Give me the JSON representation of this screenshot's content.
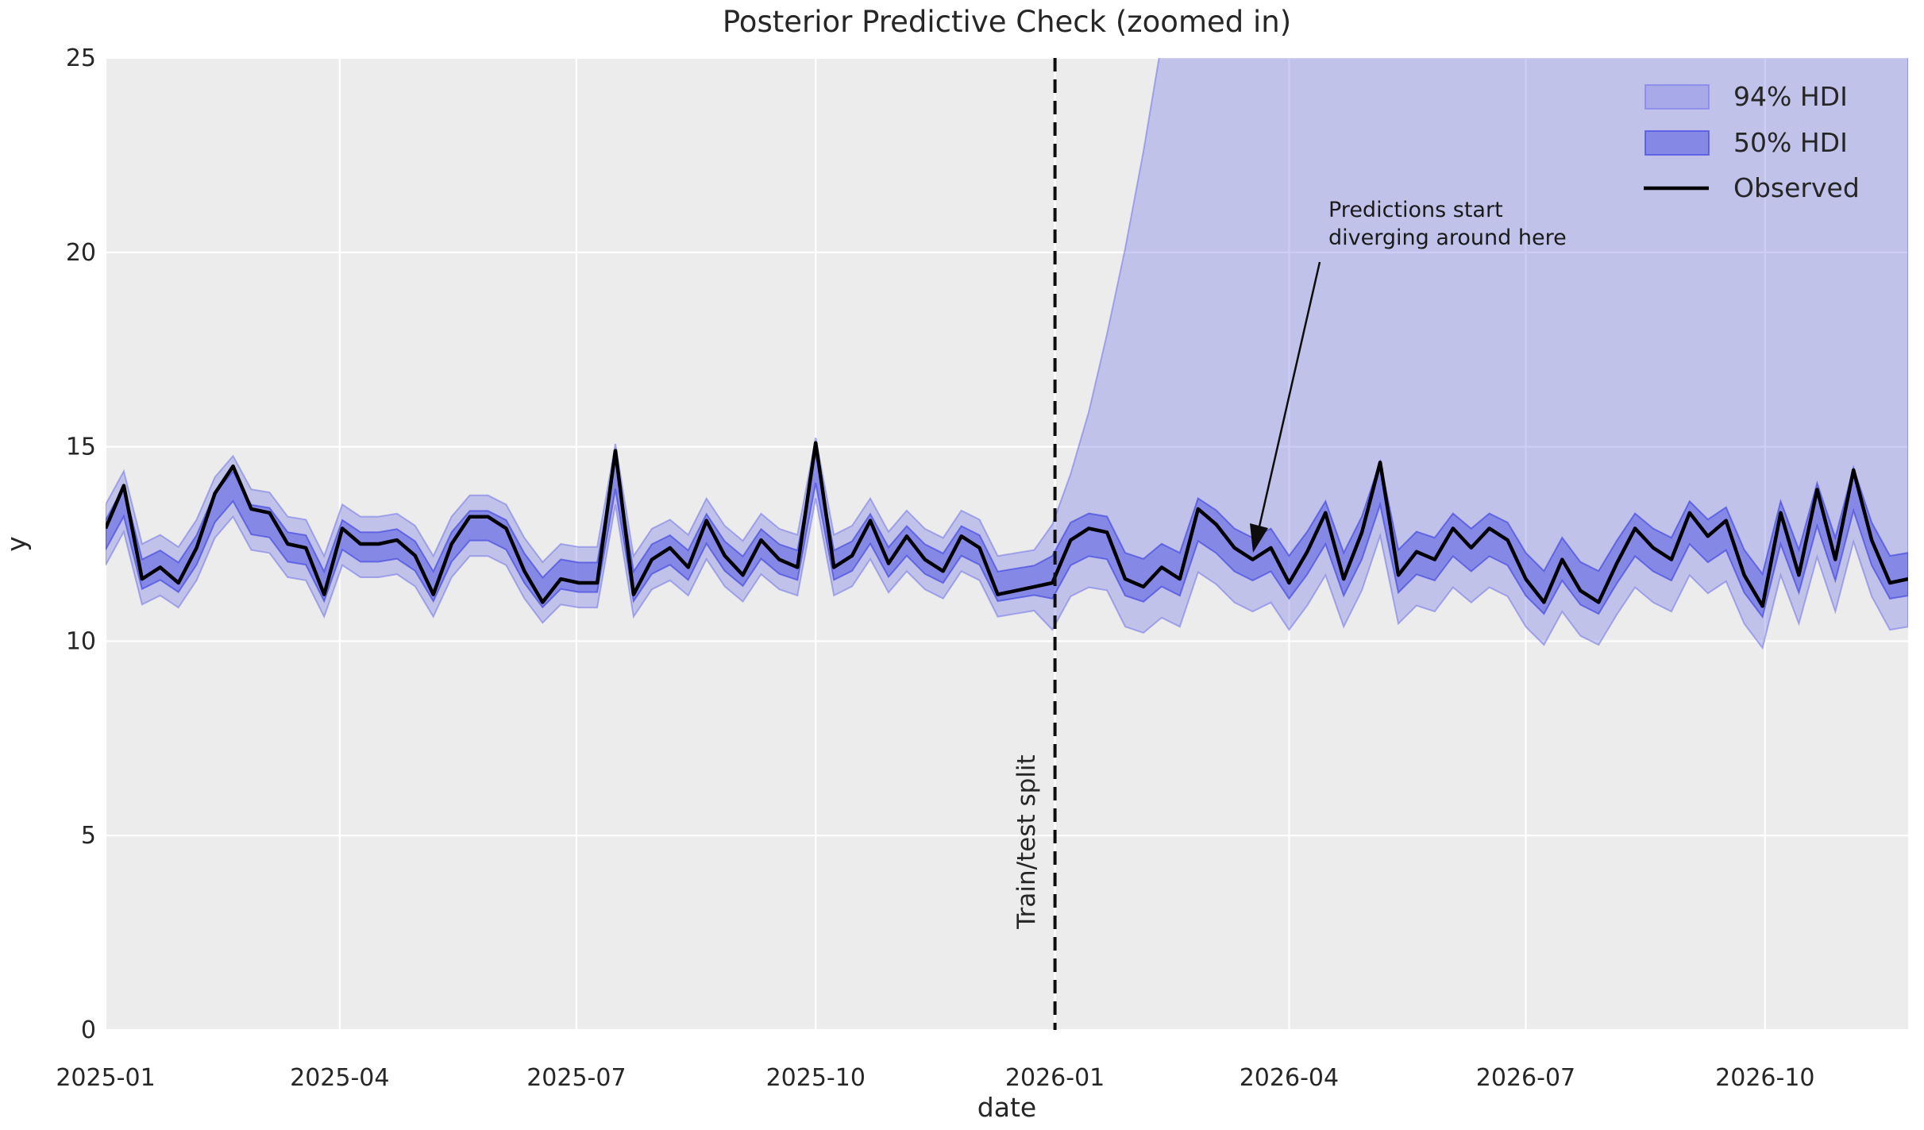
{
  "title": "Posterior Predictive Check (zoomed in)",
  "xlabel": "date",
  "ylabel": "y",
  "split_label": "Train/test split",
  "split_date": "2026-01-01",
  "annotation": {
    "line1": "Predictions start",
    "line2": "diverging around here"
  },
  "legend": {
    "hdi94": "94% HDI",
    "hdi50": "50% HDI",
    "observed": "Observed"
  },
  "colors": {
    "background": "#ffffff",
    "plot_bg": "#ececec",
    "grid": "#ffffff",
    "hdi94_fill": "rgba(130,133,232,0.40)",
    "hdi94_edge": "rgba(113,117,229,0.55)",
    "hdi50_fill": "rgba(85,90,226,0.55)",
    "hdi50_edge": "rgba(70,75,222,0.70)",
    "observed": "#000000",
    "split_line": "#0d0d0d",
    "annotation_arrow": "#0d0d0d",
    "text": "#262626"
  },
  "chart_data": {
    "type": "line",
    "title": "Posterior Predictive Check (zoomed in)",
    "xlabel": "date",
    "ylabel": "y",
    "ylim": [
      0,
      25
    ],
    "xlim": [
      "2025-01-01",
      "2026-11-25"
    ],
    "grid": true,
    "legend_position": "upper right",
    "x_start_date": "2025-01-01",
    "interval_days": 7,
    "train_test_split_index": 52,
    "observed": [
      12.9,
      14.0,
      11.6,
      11.9,
      11.5,
      12.4,
      13.8,
      14.5,
      13.4,
      13.3,
      12.5,
      12.4,
      11.2,
      12.9,
      12.5,
      12.5,
      12.6,
      12.2,
      11.2,
      12.5,
      13.2,
      13.2,
      12.9,
      11.8,
      11.0,
      11.6,
      11.5,
      11.5,
      14.9,
      11.2,
      12.1,
      12.4,
      11.9,
      13.1,
      12.2,
      11.7,
      12.6,
      12.1,
      11.9,
      15.1,
      11.9,
      12.2,
      13.1,
      12.0,
      12.7,
      12.1,
      11.8,
      12.7,
      12.4,
      11.2,
      11.3,
      11.4,
      11.5,
      12.6,
      12.9,
      12.8,
      11.6,
      11.4,
      11.9,
      11.6,
      13.4,
      13.0,
      12.4,
      12.1,
      12.4,
      11.5,
      12.3,
      13.3,
      11.6,
      12.8,
      14.6,
      11.7,
      12.3,
      12.1,
      12.9,
      12.4,
      12.9,
      12.6,
      11.6,
      11.0,
      12.1,
      11.3,
      11.0,
      12.0,
      12.9,
      12.4,
      12.1,
      13.3,
      12.7,
      13.1,
      11.7,
      10.9,
      13.3,
      11.7,
      13.9,
      12.1,
      14.4,
      12.6,
      11.5,
      11.6
    ],
    "bands": {
      "center_shrink_mean": 12.15,
      "center_shrink_factor": 0.78,
      "hdi50_half_width_train": 0.38,
      "hdi50_half_width_test": 0.55,
      "hdi94_half_width_train": 0.78,
      "hdi94_lower_offset_test": 1.35,
      "hdi94_upper_test_start": [
        13.0,
        14.3,
        15.9,
        17.9,
        20.1,
        22.6,
        25.4,
        29.0,
        34.0
      ],
      "hdi94_upper_test_rest": 45
    },
    "x_ticks": [
      {
        "label": "2025-01",
        "date": "2025-01-01"
      },
      {
        "label": "2025-04",
        "date": "2025-04-01"
      },
      {
        "label": "2025-07",
        "date": "2025-07-01"
      },
      {
        "label": "2025-10",
        "date": "2025-10-01"
      },
      {
        "label": "2026-01",
        "date": "2026-01-01"
      },
      {
        "label": "2026-04",
        "date": "2026-04-01"
      },
      {
        "label": "2026-07",
        "date": "2026-07-01"
      },
      {
        "label": "2026-10",
        "date": "2026-10-01"
      }
    ],
    "y_ticks": [
      0,
      5,
      10,
      15,
      20,
      25
    ]
  }
}
